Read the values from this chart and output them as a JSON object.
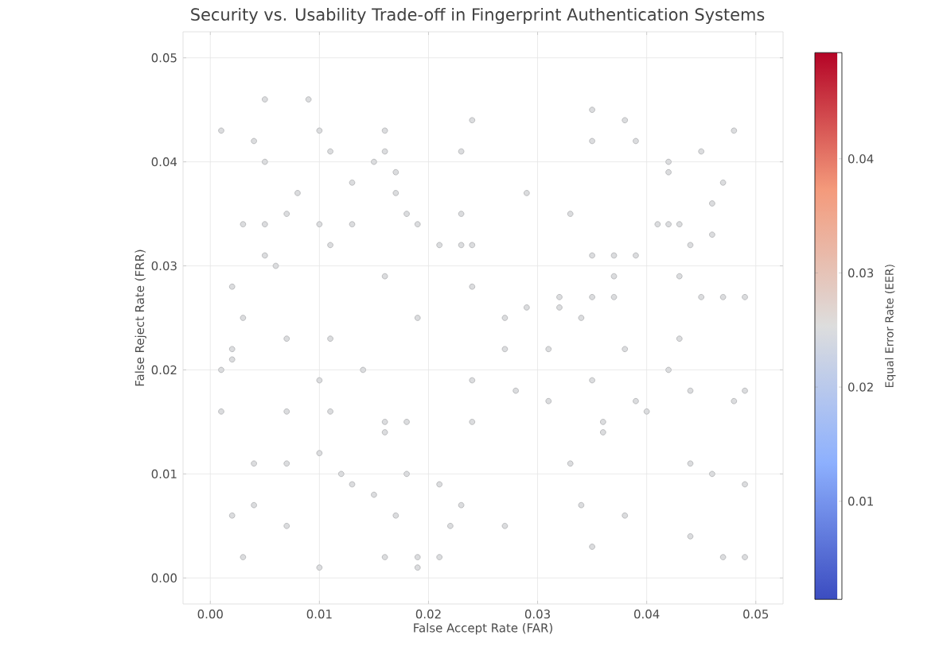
{
  "chart_data": {
    "type": "scatter",
    "title": "Security vs. Usability Trade-off in Fingerprint Authentication Systems",
    "xlabel": "False Accept Rate (FAR)",
    "ylabel": "False Reject Rate (FRR)",
    "clabel": "Equal Error Rate (EER)",
    "xlim": [
      -0.0025,
      0.0525
    ],
    "ylim": [
      -0.0025,
      0.0525
    ],
    "xticks": [
      {
        "value": 0,
        "label": "0.00"
      },
      0.01,
      0.02,
      0.03,
      0.04,
      0.05
    ],
    "yticks": [
      {
        "value": 0,
        "label": "0.00"
      },
      0.01,
      0.02,
      0.03,
      0.04,
      0.05
    ],
    "clim": [
      0.0014,
      0.0493
    ],
    "cticks": [
      0.01,
      0.02,
      0.03,
      0.04
    ],
    "grid": true,
    "marker": "circle",
    "x": [
      0.005,
      0.009,
      0.001,
      0.01,
      0.004,
      0.011,
      0.016,
      0.005,
      0.016,
      0.015,
      0.017,
      0.013,
      0.008,
      0.017,
      0.007,
      0.018,
      0.003,
      0.005,
      0.01,
      0.013,
      0.019,
      0.023,
      0.011,
      0.021,
      0.023,
      0.024,
      0.005,
      0.006,
      0.016,
      0.002,
      0.024,
      0.019,
      0.027,
      0.029,
      0.003,
      0.029,
      0.023,
      0.024,
      0.035,
      0.038,
      0.035,
      0.039,
      0.042,
      0.045,
      0.042,
      0.047,
      0.033,
      0.046,
      0.041,
      0.042,
      0.043,
      0.046,
      0.044,
      0.035,
      0.037,
      0.039,
      0.037,
      0.043,
      0.032,
      0.032,
      0.035,
      0.037,
      0.045,
      0.047,
      0.049,
      0.034,
      0.048,
      0.002,
      0.002,
      0.001,
      0.007,
      0.011,
      0.014,
      0.01,
      0.001,
      0.007,
      0.011,
      0.016,
      0.018,
      0.016,
      0.01,
      0.004,
      0.007,
      0.018,
      0.012,
      0.013,
      0.015,
      0.021,
      0.024,
      0.024,
      0.028,
      0.027,
      0.002,
      0.004,
      0.017,
      0.023,
      0.027,
      0.007,
      0.022,
      0.01,
      0.003,
      0.019,
      0.019,
      0.021,
      0.016,
      0.031,
      0.035,
      0.038,
      0.043,
      0.042,
      0.031,
      0.039,
      0.04,
      0.044,
      0.048,
      0.049,
      0.036,
      0.036,
      0.033,
      0.044,
      0.046,
      0.049,
      0.034,
      0.038,
      0.044,
      0.047,
      0.049,
      0.035
    ],
    "values": [
      0.046,
      0.046,
      0.043,
      0.043,
      0.042,
      0.041,
      0.043,
      0.04,
      0.041,
      0.04,
      0.039,
      0.038,
      0.037,
      0.037,
      0.035,
      0.035,
      0.034,
      0.034,
      0.034,
      0.034,
      0.034,
      0.035,
      0.032,
      0.032,
      0.032,
      0.032,
      0.031,
      0.03,
      0.029,
      0.028,
      0.028,
      0.025,
      0.025,
      0.026,
      0.025,
      0.037,
      0.041,
      0.044,
      0.045,
      0.044,
      0.042,
      0.042,
      0.04,
      0.041,
      0.039,
      0.038,
      0.035,
      0.036,
      0.034,
      0.034,
      0.034,
      0.033,
      0.032,
      0.031,
      0.031,
      0.031,
      0.029,
      0.029,
      0.027,
      0.026,
      0.027,
      0.027,
      0.027,
      0.027,
      0.027,
      0.025,
      0.043,
      0.022,
      0.021,
      0.02,
      0.023,
      0.023,
      0.02,
      0.019,
      0.016,
      0.016,
      0.016,
      0.015,
      0.015,
      0.014,
      0.012,
      0.011,
      0.011,
      0.01,
      0.01,
      0.009,
      0.008,
      0.009,
      0.015,
      0.019,
      0.018,
      0.022,
      0.006,
      0.007,
      0.006,
      0.007,
      0.005,
      0.005,
      0.005,
      0.001,
      0.002,
      0.001,
      0.002,
      0.002,
      0.002,
      0.022,
      0.019,
      0.022,
      0.023,
      0.02,
      0.017,
      0.017,
      0.016,
      0.018,
      0.017,
      0.018,
      0.015,
      0.014,
      0.011,
      0.011,
      0.01,
      0.009,
      0.007,
      0.006,
      0.004,
      0.002,
      0.002,
      0.003
    ],
    "cvalues": [
      0.025,
      0.025,
      0.025,
      0.025,
      0.025,
      0.025,
      0.025,
      0.025,
      0.025,
      0.025,
      0.025,
      0.025,
      0.025,
      0.025,
      0.025,
      0.025,
      0.025,
      0.025,
      0.025,
      0.025,
      0.025,
      0.025,
      0.025,
      0.025,
      0.025,
      0.025,
      0.025,
      0.025,
      0.025,
      0.025,
      0.025,
      0.025,
      0.025,
      0.025,
      0.025,
      0.025,
      0.025,
      0.025,
      0.025,
      0.025,
      0.025,
      0.025,
      0.025,
      0.025,
      0.025,
      0.025,
      0.025,
      0.025,
      0.025,
      0.025,
      0.025,
      0.025,
      0.025,
      0.025,
      0.025,
      0.025,
      0.025,
      0.025,
      0.025,
      0.025,
      0.025,
      0.025,
      0.025,
      0.025,
      0.025,
      0.025,
      0.025,
      0.025,
      0.025,
      0.025,
      0.025,
      0.025,
      0.025,
      0.025,
      0.025,
      0.025,
      0.025,
      0.025,
      0.025,
      0.025,
      0.025,
      0.025,
      0.025,
      0.025,
      0.025,
      0.025,
      0.025,
      0.025,
      0.025,
      0.025,
      0.025,
      0.025,
      0.025,
      0.025,
      0.025,
      0.025,
      0.025,
      0.025,
      0.025,
      0.025,
      0.025,
      0.025,
      0.025,
      0.025,
      0.025,
      0.025,
      0.025,
      0.025,
      0.025,
      0.025,
      0.025,
      0.025,
      0.025,
      0.025,
      0.025,
      0.025,
      0.025,
      0.025,
      0.025,
      0.025,
      0.025,
      0.025,
      0.025,
      0.025,
      0.025,
      0.025,
      0.025,
      0.025
    ]
  }
}
